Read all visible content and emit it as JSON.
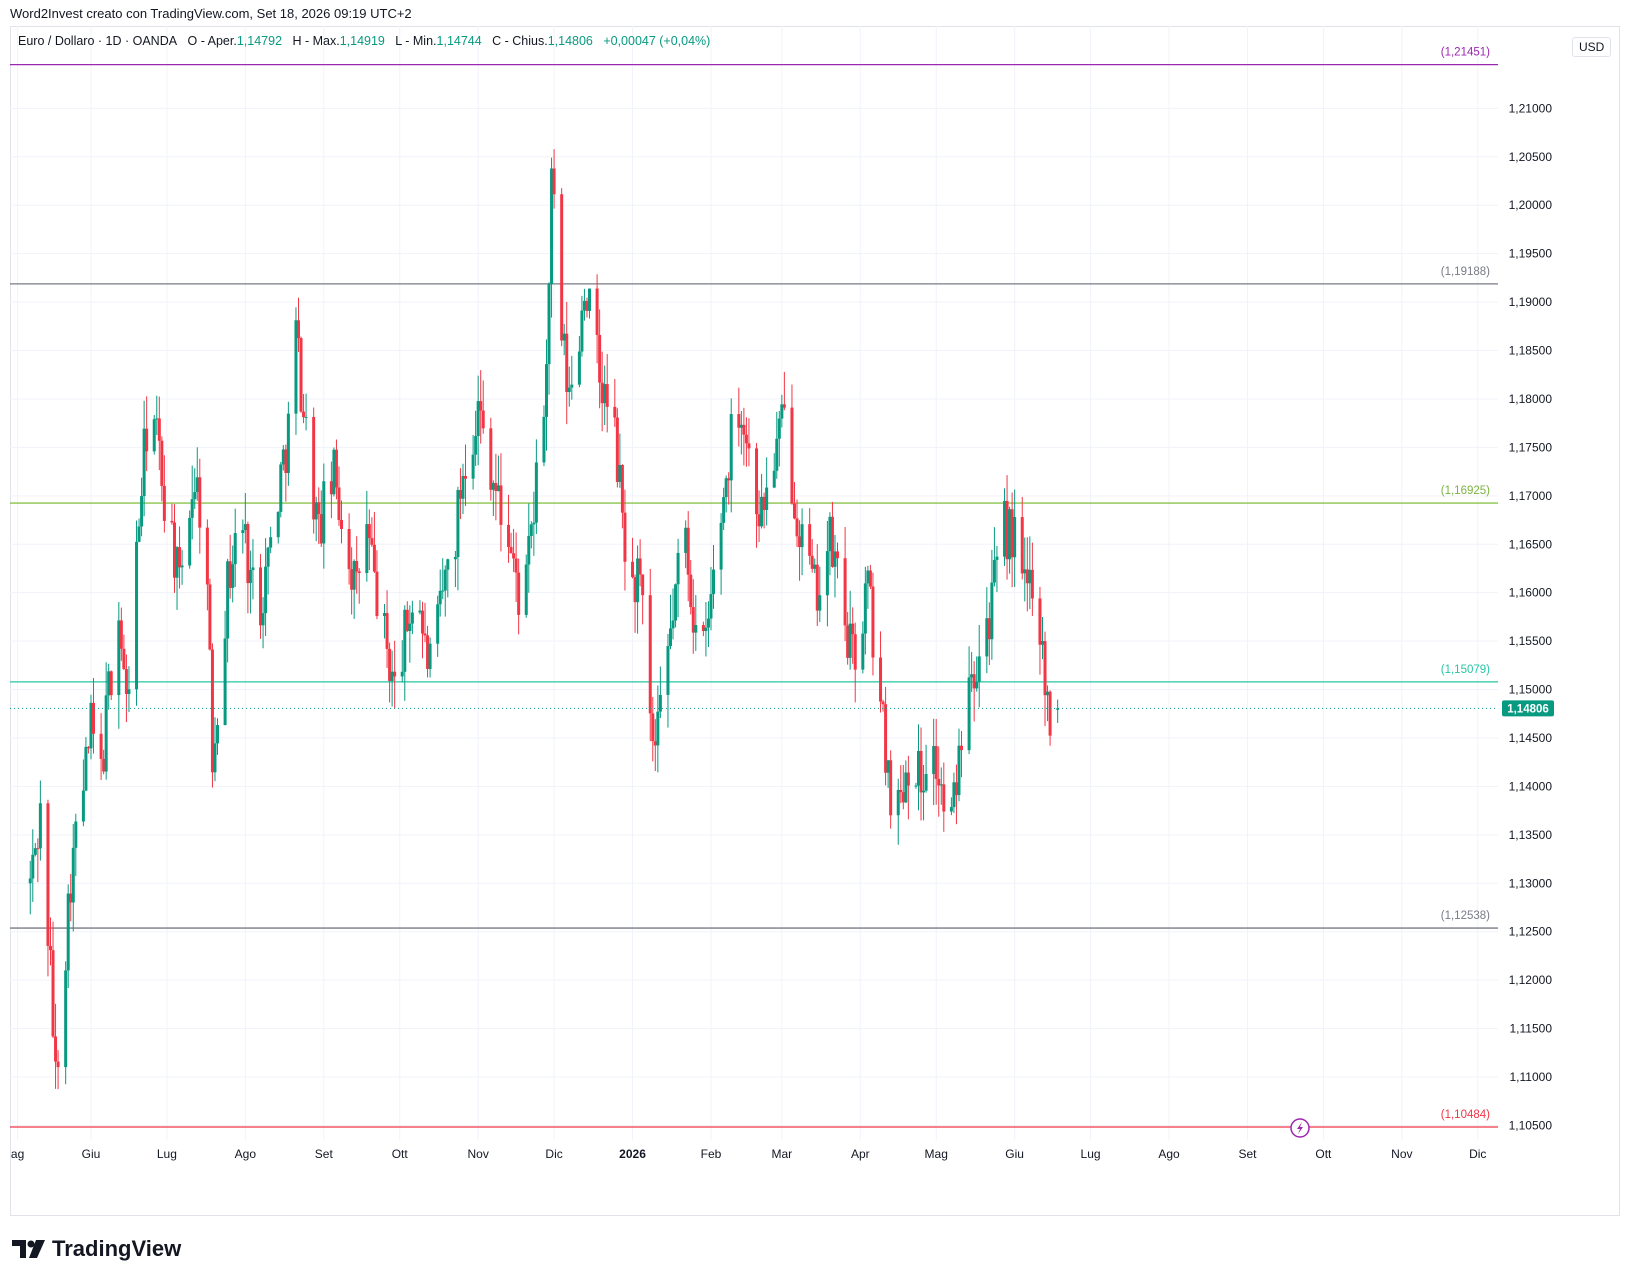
{
  "caption": "Word2Invest creato con TradingView.com, Set 18, 2026 09:19 UTC+2",
  "legend": {
    "symbol": "Euro / Dollaro · 1D · OANDA",
    "open_label": "O - Aper.",
    "open": "1,14792",
    "high_label": "H - Max.",
    "high": "1,14919",
    "low_label": "L - Min.",
    "low": "1,14744",
    "close_label": "C - Chius.",
    "close": "1,14806",
    "change": "+0,00047 (+0,04%)"
  },
  "currency": "USD",
  "brand": "TradingView",
  "colors": {
    "up": "#089981",
    "down": "#f23645",
    "grid": "#f0f3fa",
    "axis_text": "#131722",
    "level_gray": "#787b86",
    "level_purple": "#9c27b0",
    "level_green": "#8bc34a",
    "level_teal": "#26c6a6",
    "level_red": "#f23645",
    "price_tag": "#089981"
  },
  "chart_data": {
    "type": "candlestick",
    "symbol": "EUR/USD",
    "timeframe": "1D",
    "ylim": [
      1.1035,
      1.2185
    ],
    "y_ticks": [
      "1,21000",
      "1,20500",
      "1,20000",
      "1,19500",
      "1,19000",
      "1,18500",
      "1,18000",
      "1,17500",
      "1,17000",
      "1,16500",
      "1,16000",
      "1,15500",
      "1,15000",
      "1,14500",
      "1,14000",
      "1,13500",
      "1,13000",
      "1,12500",
      "1,12000",
      "1,11500",
      "1,11000",
      "1,10500"
    ],
    "y_tick_values": [
      1.21,
      1.205,
      1.2,
      1.195,
      1.19,
      1.185,
      1.18,
      1.175,
      1.17,
      1.165,
      1.16,
      1.155,
      1.15,
      1.145,
      1.14,
      1.135,
      1.13,
      1.125,
      1.12,
      1.115,
      1.11,
      1.105
    ],
    "x_ticks": [
      "ag",
      "Giu",
      "Lug",
      "Ago",
      "Set",
      "Ott",
      "Nov",
      "Dic",
      "2026",
      "Feb",
      "Mar",
      "Apr",
      "Mag",
      "Giu",
      "Lug",
      "Ago",
      "Set",
      "Ott",
      "Nov",
      "Dic"
    ],
    "x_tick_days": [
      -5,
      24,
      54,
      85,
      116,
      146,
      177,
      207,
      238,
      269,
      297,
      328,
      358,
      389,
      419,
      450,
      481,
      511,
      542,
      572
    ],
    "x_range_days": [
      -8,
      580
    ],
    "x_start_date": "2025-05-01",
    "last_price": 1.14806,
    "last_price_label": "1,14806",
    "levels": [
      {
        "value": 1.21451,
        "label": "(1,21451)",
        "color": "#9c27b0"
      },
      {
        "value": 1.19188,
        "label": "(1,19188)",
        "color": "#787b86"
      },
      {
        "value": 1.16925,
        "label": "(1,16925)",
        "color": "#8bc34a"
      },
      {
        "value": 1.15079,
        "label": "(1,15079)",
        "color": "#26c6a6"
      },
      {
        "value": 1.12538,
        "label": "(1,12538)",
        "color": "#787b86"
      },
      {
        "value": 1.10484,
        "label": "(1,10484)",
        "color": "#f23645"
      }
    ],
    "close_path": [
      [
        0,
        1.13
      ],
      [
        4,
        1.137
      ],
      [
        8,
        1.121
      ],
      [
        10,
        1.11
      ],
      [
        13,
        1.12
      ],
      [
        16,
        1.131
      ],
      [
        20,
        1.138
      ],
      [
        24,
        1.146
      ],
      [
        28,
        1.141
      ],
      [
        31,
        1.15
      ],
      [
        35,
        1.158
      ],
      [
        38,
        1.148
      ],
      [
        41,
        1.16
      ],
      [
        44,
        1.171
      ],
      [
        47,
        1.18
      ],
      [
        50,
        1.176
      ],
      [
        53,
        1.17
      ],
      [
        56,
        1.166
      ],
      [
        59,
        1.16
      ],
      [
        62,
        1.168
      ],
      [
        65,
        1.172
      ],
      [
        68,
        1.168
      ],
      [
        70,
        1.16
      ],
      [
        72,
        1.143
      ],
      [
        75,
        1.152
      ],
      [
        78,
        1.161
      ],
      [
        81,
        1.165
      ],
      [
        84,
        1.167
      ],
      [
        87,
        1.162
      ],
      [
        90,
        1.158
      ],
      [
        93,
        1.162
      ],
      [
        96,
        1.167
      ],
      [
        99,
        1.172
      ],
      [
        102,
        1.177
      ],
      [
        105,
        1.187
      ],
      [
        108,
        1.179
      ],
      [
        111,
        1.172
      ],
      [
        114,
        1.166
      ],
      [
        117,
        1.17
      ],
      [
        120,
        1.172
      ],
      [
        123,
        1.168
      ],
      [
        126,
        1.164
      ],
      [
        129,
        1.16
      ],
      [
        132,
        1.168
      ],
      [
        135,
        1.163
      ],
      [
        138,
        1.158
      ],
      [
        141,
        1.154
      ],
      [
        144,
        1.15
      ],
      [
        147,
        1.154
      ],
      [
        150,
        1.158
      ],
      [
        153,
        1.161
      ],
      [
        156,
        1.154
      ],
      [
        159,
        1.152
      ],
      [
        162,
        1.158
      ],
      [
        165,
        1.163
      ],
      [
        168,
        1.166
      ],
      [
        171,
        1.173
      ],
      [
        174,
        1.176
      ],
      [
        177,
        1.179
      ],
      [
        180,
        1.176
      ],
      [
        183,
        1.172
      ],
      [
        186,
        1.168
      ],
      [
        189,
        1.166
      ],
      [
        192,
        1.161
      ],
      [
        195,
        1.158
      ],
      [
        198,
        1.166
      ],
      [
        201,
        1.173
      ],
      [
        204,
        1.183
      ],
      [
        206,
        1.202
      ],
      [
        208,
        1.196
      ],
      [
        210,
        1.186
      ],
      [
        213,
        1.18
      ],
      [
        216,
        1.184
      ],
      [
        219,
        1.192
      ],
      [
        222,
        1.188
      ],
      [
        225,
        1.182
      ],
      [
        228,
        1.179
      ],
      [
        231,
        1.176
      ],
      [
        234,
        1.168
      ],
      [
        237,
        1.159
      ],
      [
        240,
        1.162
      ],
      [
        243,
        1.155
      ],
      [
        245,
        1.146
      ],
      [
        247,
        1.143
      ],
      [
        250,
        1.149
      ],
      [
        253,
        1.156
      ],
      [
        256,
        1.162
      ],
      [
        259,
        1.166
      ],
      [
        262,
        1.158
      ],
      [
        265,
        1.152
      ],
      [
        268,
        1.157
      ],
      [
        271,
        1.164
      ],
      [
        274,
        1.17
      ],
      [
        277,
        1.176
      ],
      [
        280,
        1.18
      ],
      [
        283,
        1.176
      ],
      [
        286,
        1.171
      ],
      [
        289,
        1.168
      ],
      [
        292,
        1.172
      ],
      [
        295,
        1.175
      ],
      [
        298,
        1.178
      ],
      [
        301,
        1.172
      ],
      [
        304,
        1.167
      ],
      [
        307,
        1.163
      ],
      [
        310,
        1.16
      ],
      [
        313,
        1.162
      ],
      [
        316,
        1.165
      ],
      [
        319,
        1.162
      ],
      [
        322,
        1.157
      ],
      [
        325,
        1.153
      ],
      [
        328,
        1.156
      ],
      [
        331,
        1.161
      ],
      [
        334,
        1.153
      ],
      [
        337,
        1.146
      ],
      [
        340,
        1.14
      ],
      [
        343,
        1.138
      ],
      [
        346,
        1.142
      ],
      [
        349,
        1.144
      ],
      [
        352,
        1.14
      ],
      [
        355,
        1.145
      ],
      [
        358,
        1.142
      ],
      [
        361,
        1.138
      ],
      [
        364,
        1.136
      ],
      [
        367,
        1.143
      ],
      [
        370,
        1.154
      ],
      [
        373,
        1.153
      ],
      [
        376,
        1.155
      ],
      [
        379,
        1.158
      ],
      [
        382,
        1.162
      ],
      [
        384,
        1.167
      ],
      [
        387,
        1.166
      ],
      [
        390,
        1.165
      ],
      [
        393,
        1.16
      ],
      [
        396,
        1.162
      ],
      [
        398,
        1.16
      ],
      [
        401,
        1.151
      ],
      [
        403,
        1.147
      ],
      [
        406,
        1.148
      ]
    ]
  }
}
